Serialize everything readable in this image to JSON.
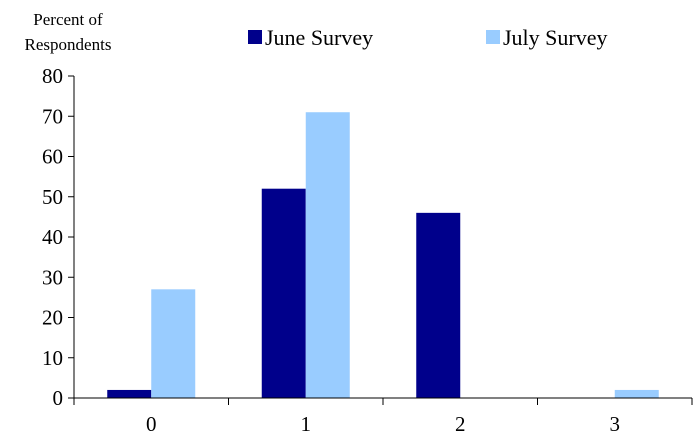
{
  "chart_data": {
    "type": "bar",
    "title": "",
    "xlabel": "",
    "ylabel_lines": [
      "Percent of",
      "Respondents"
    ],
    "categories": [
      "0",
      "1",
      "2",
      "3"
    ],
    "series": [
      {
        "name": "June Survey",
        "color": "#00008b",
        "values": [
          2,
          52,
          46,
          0
        ]
      },
      {
        "name": "July Survey",
        "color": "#99ccff",
        "values": [
          27,
          71,
          0,
          2
        ]
      }
    ],
    "ylim": [
      0,
      80
    ],
    "yticks": [
      0,
      10,
      20,
      30,
      40,
      50,
      60,
      70,
      80
    ],
    "grid": false,
    "legend_position": "top"
  }
}
